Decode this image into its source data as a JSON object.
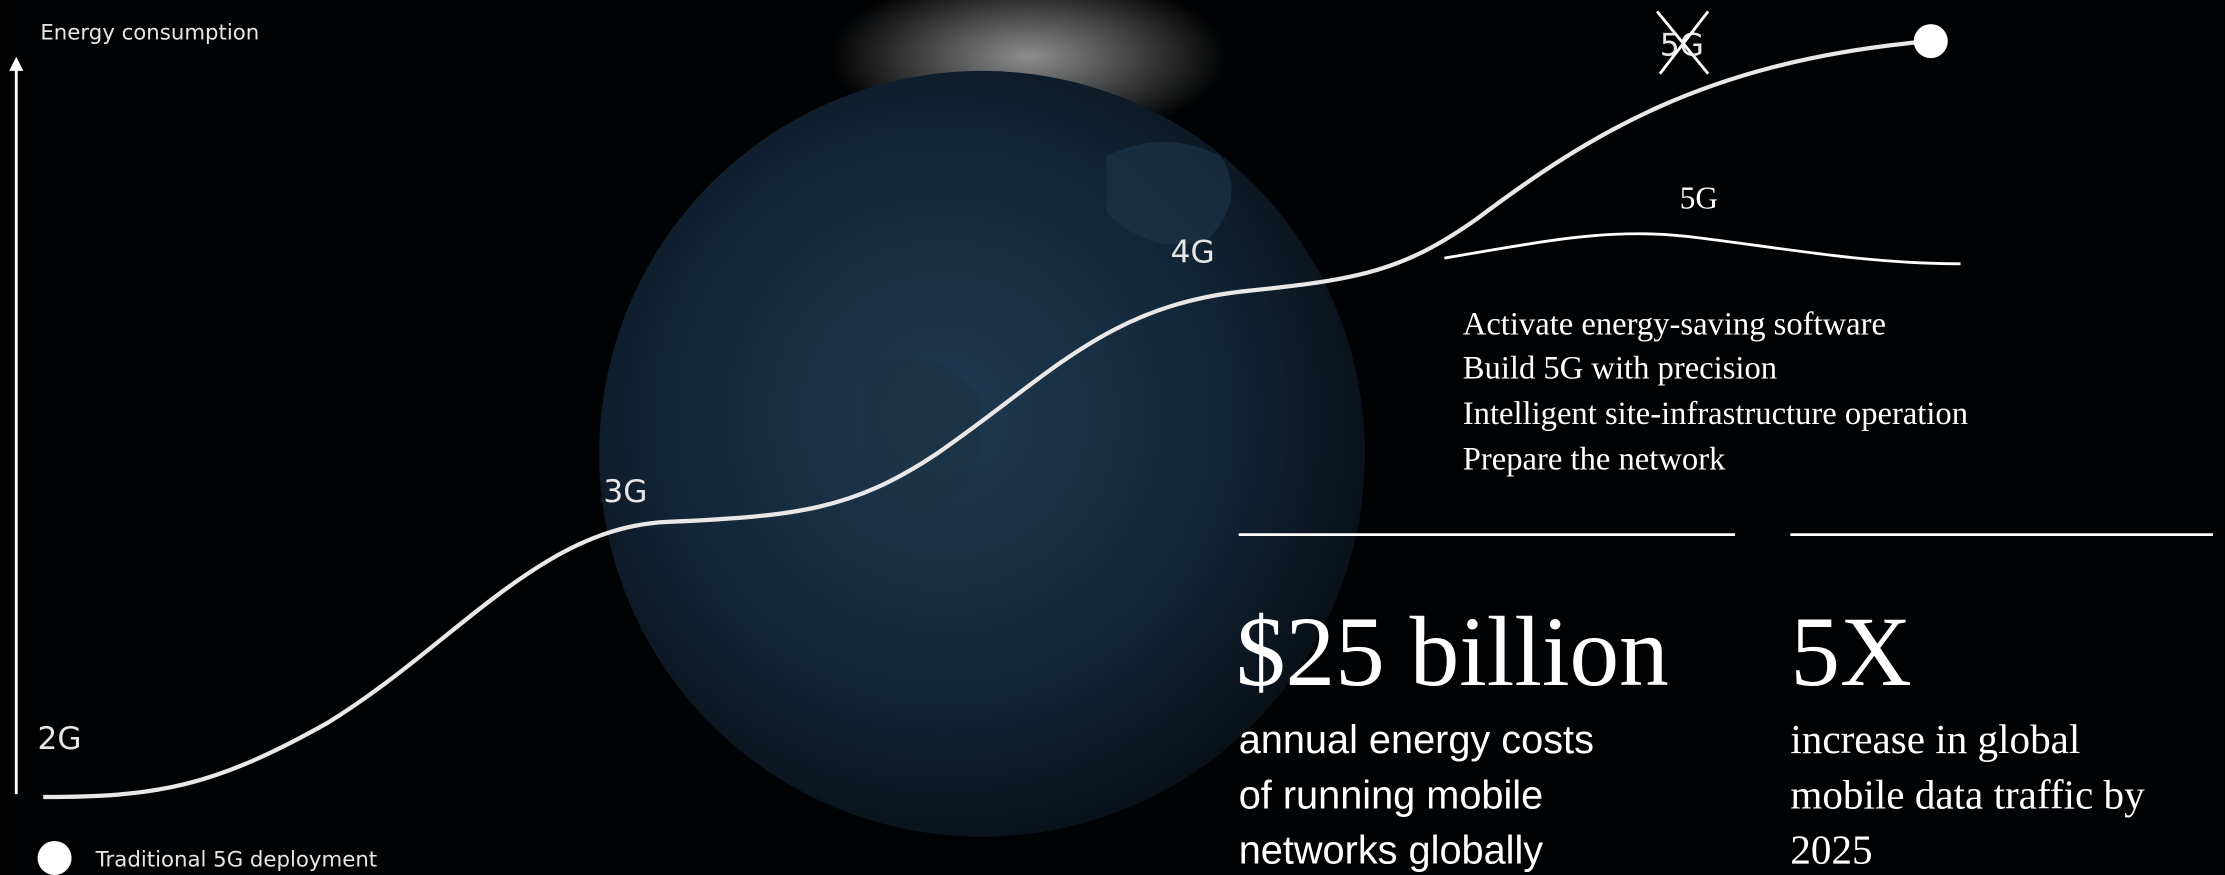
{
  "axis_label": "Energy consumption",
  "generations": [
    "2G",
    "3G",
    "4G",
    "5G"
  ],
  "new_5g": "5G",
  "actions": [
    "Activate energy-saving software",
    "Build 5G with precision",
    "Intelligent site-infrastructure operation",
    "Prepare the network"
  ],
  "stats": [
    {
      "value": "$25 billion",
      "description": [
        "annual energy costs",
        "of running mobile",
        "networks globally"
      ]
    },
    {
      "value": "5X",
      "description": [
        "increase in global",
        "mobile data traffic by",
        "2025"
      ]
    }
  ],
  "legend": "Traditional 5G deployment"
}
